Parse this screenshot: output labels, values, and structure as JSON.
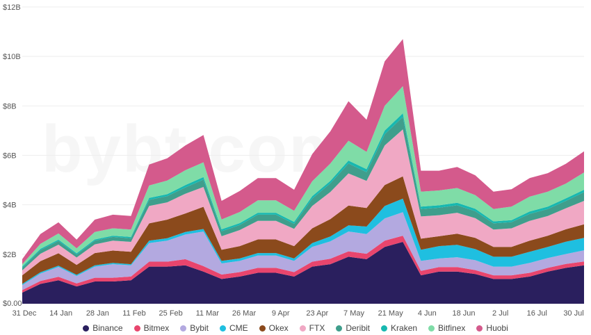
{
  "chart_data": {
    "type": "area",
    "stacked": true,
    "title": "",
    "xlabel": "",
    "ylabel": "",
    "y_ticks": [
      "$0.00",
      "$2B",
      "$4B",
      "$6B",
      "$8B",
      "$10B",
      "$12B"
    ],
    "ylim": [
      0,
      12
    ],
    "x_ticks": [
      "31 Dec",
      "14 Jan",
      "28 Jan",
      "11 Feb",
      "25 Feb",
      "11 Mar",
      "26 Mar",
      "9 Apr",
      "23 Apr",
      "7 May",
      "21 May",
      "4 Jun",
      "18 Jun",
      "2 Jul",
      "16 Jul",
      "30 Jul"
    ],
    "grid": "horizontal",
    "legend": "bottom",
    "colors": [
      "#2a1f5e",
      "#e8456d",
      "#b3a9e0",
      "#1fbfe0",
      "#8b4a1c",
      "#f0a8c4",
      "#3f9e8c",
      "#17b8b0",
      "#7fdca7",
      "#d45a8c"
    ],
    "series": [
      {
        "name": "Binance",
        "values": [
          0.45,
          0.8,
          0.95,
          0.7,
          0.9,
          0.9,
          0.95,
          1.5,
          1.5,
          1.55,
          1.3,
          1.0,
          1.1,
          1.25,
          1.25,
          1.1,
          1.5,
          1.6,
          1.9,
          1.8,
          2.3,
          2.5,
          1.15,
          1.3,
          1.3,
          1.2,
          1.0,
          1.0,
          1.1,
          1.3,
          1.45,
          1.55
        ]
      },
      {
        "name": "Bitmex",
        "values": [
          0.1,
          0.12,
          0.14,
          0.12,
          0.15,
          0.15,
          0.15,
          0.2,
          0.2,
          0.25,
          0.22,
          0.18,
          0.18,
          0.2,
          0.2,
          0.18,
          0.2,
          0.22,
          0.22,
          0.22,
          0.25,
          0.25,
          0.18,
          0.18,
          0.18,
          0.16,
          0.15,
          0.15,
          0.15,
          0.15,
          0.16,
          0.16
        ]
      },
      {
        "name": "Bybit",
        "values": [
          0.2,
          0.3,
          0.4,
          0.3,
          0.45,
          0.55,
          0.45,
          0.75,
          0.85,
          1.0,
          1.4,
          0.45,
          0.45,
          0.5,
          0.5,
          0.45,
          0.6,
          0.7,
          0.8,
          0.8,
          0.9,
          0.95,
          0.4,
          0.35,
          0.4,
          0.4,
          0.35,
          0.35,
          0.4,
          0.4,
          0.4,
          0.45
        ]
      },
      {
        "name": "CME",
        "values": [
          0.05,
          0.05,
          0.05,
          0.05,
          0.05,
          0.05,
          0.05,
          0.1,
          0.1,
          0.1,
          0.1,
          0.1,
          0.1,
          0.1,
          0.1,
          0.1,
          0.15,
          0.2,
          0.25,
          0.3,
          0.5,
          0.55,
          0.45,
          0.5,
          0.5,
          0.45,
          0.4,
          0.4,
          0.45,
          0.45,
          0.5,
          0.5
        ]
      },
      {
        "name": "Okex",
        "values": [
          0.35,
          0.45,
          0.5,
          0.4,
          0.5,
          0.5,
          0.5,
          0.7,
          0.75,
          0.75,
          0.9,
          0.45,
          0.5,
          0.55,
          0.55,
          0.5,
          0.6,
          0.7,
          0.8,
          0.75,
          0.85,
          0.9,
          0.45,
          0.4,
          0.45,
          0.45,
          0.4,
          0.4,
          0.45,
          0.45,
          0.5,
          0.55
        ]
      },
      {
        "name": "FTX",
        "values": [
          0.2,
          0.3,
          0.35,
          0.3,
          0.35,
          0.4,
          0.4,
          0.7,
          0.7,
          0.8,
          0.8,
          0.55,
          0.65,
          0.75,
          0.75,
          0.7,
          0.9,
          1.1,
          1.3,
          1.1,
          1.6,
          1.9,
          0.9,
          0.85,
          0.85,
          0.8,
          0.7,
          0.75,
          0.8,
          0.8,
          0.85,
          0.95
        ]
      },
      {
        "name": "Deribit",
        "values": [
          0.1,
          0.15,
          0.15,
          0.12,
          0.15,
          0.15,
          0.15,
          0.25,
          0.25,
          0.25,
          0.3,
          0.2,
          0.2,
          0.25,
          0.25,
          0.2,
          0.3,
          0.35,
          0.4,
          0.35,
          0.45,
          0.5,
          0.3,
          0.3,
          0.3,
          0.28,
          0.25,
          0.25,
          0.28,
          0.28,
          0.3,
          0.35
        ]
      },
      {
        "name": "Kraken",
        "values": [
          0.05,
          0.05,
          0.05,
          0.05,
          0.05,
          0.05,
          0.05,
          0.08,
          0.08,
          0.1,
          0.1,
          0.08,
          0.08,
          0.08,
          0.08,
          0.08,
          0.1,
          0.1,
          0.12,
          0.12,
          0.15,
          0.15,
          0.1,
          0.1,
          0.1,
          0.1,
          0.08,
          0.08,
          0.1,
          0.1,
          0.1,
          0.1
        ]
      },
      {
        "name": "Bitfinex",
        "values": [
          0.1,
          0.2,
          0.25,
          0.2,
          0.3,
          0.3,
          0.3,
          0.5,
          0.55,
          0.6,
          0.6,
          0.4,
          0.45,
          0.5,
          0.5,
          0.45,
          0.6,
          0.7,
          0.8,
          0.7,
          1.0,
          1.1,
          0.6,
          0.6,
          0.6,
          0.55,
          0.5,
          0.55,
          0.6,
          0.6,
          0.6,
          0.7
        ]
      },
      {
        "name": "Huobi",
        "values": [
          0.2,
          0.4,
          0.45,
          0.35,
          0.5,
          0.55,
          0.55,
          0.85,
          0.9,
          1.0,
          1.1,
          0.75,
          0.85,
          0.9,
          0.9,
          0.85,
          1.1,
          1.3,
          1.6,
          1.3,
          1.8,
          1.9,
          0.85,
          0.8,
          0.85,
          0.8,
          0.7,
          0.7,
          0.75,
          0.75,
          0.8,
          0.85
        ]
      }
    ]
  }
}
